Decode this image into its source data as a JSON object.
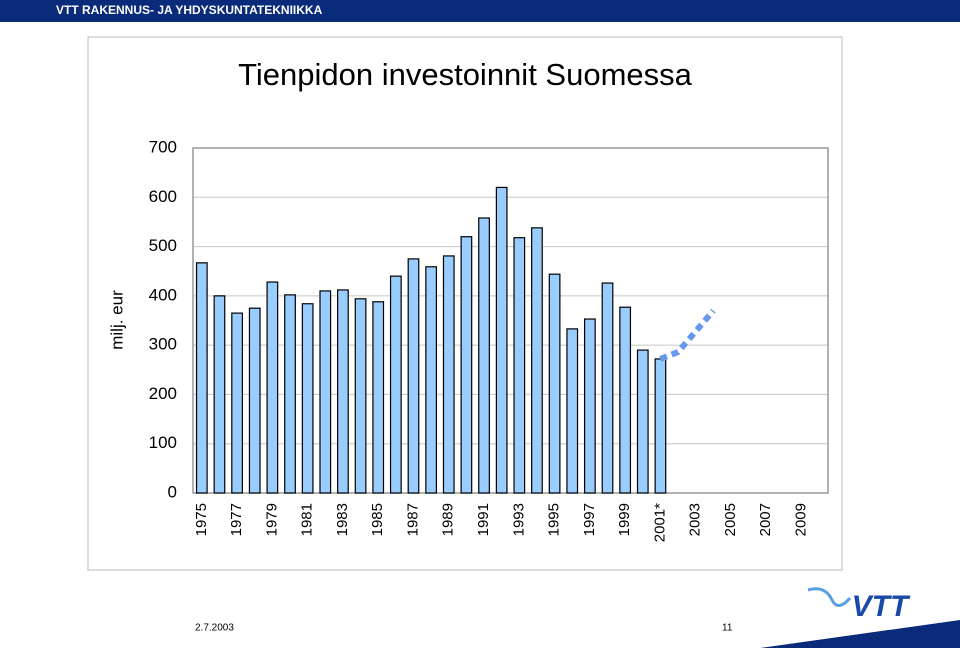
{
  "header": {
    "title": "VTT RAKENNUS- JA YHDYSKUNTATEKNIIKKA"
  },
  "footer": {
    "date": "2.7.2003",
    "page": "11",
    "logo": "VTT"
  },
  "chart_data": {
    "type": "bar",
    "title": "Tienpidon investoinnit Suomessa",
    "y_label": "milj. eur",
    "categories": [
      "1975",
      null,
      "1977",
      null,
      "1979",
      null,
      "1981",
      null,
      "1983",
      null,
      "1985",
      null,
      "1987",
      null,
      "1989",
      null,
      "1991",
      null,
      "1993",
      null,
      "1995",
      null,
      "1997",
      null,
      "1999",
      null,
      "2001*",
      null,
      "2003",
      null,
      "2005",
      null,
      "2007",
      null,
      "2009",
      null
    ],
    "series": [
      {
        "type": "bar",
        "color": "#99ccff",
        "values": [
          467,
          400,
          365,
          375,
          428,
          402,
          384,
          410,
          412,
          394,
          388,
          440,
          475,
          459,
          481,
          520,
          558,
          620,
          518,
          538,
          444,
          333,
          353,
          426,
          377,
          290,
          272,
          null,
          null,
          null,
          null,
          null,
          null,
          null,
          null,
          null
        ]
      },
      {
        "type": "line",
        "dashed": true,
        "color": "#6699ee",
        "values": [
          null,
          null,
          null,
          null,
          null,
          null,
          null,
          null,
          null,
          null,
          null,
          null,
          null,
          null,
          null,
          null,
          null,
          null,
          null,
          null,
          null,
          null,
          null,
          null,
          null,
          null,
          272,
          286,
          328,
          370,
          null,
          null,
          null,
          null,
          null,
          null
        ]
      }
    ],
    "ylim": [
      0,
      700
    ],
    "yticks": [
      0,
      100,
      200,
      300,
      400,
      500,
      600,
      700
    ],
    "grid": true
  }
}
